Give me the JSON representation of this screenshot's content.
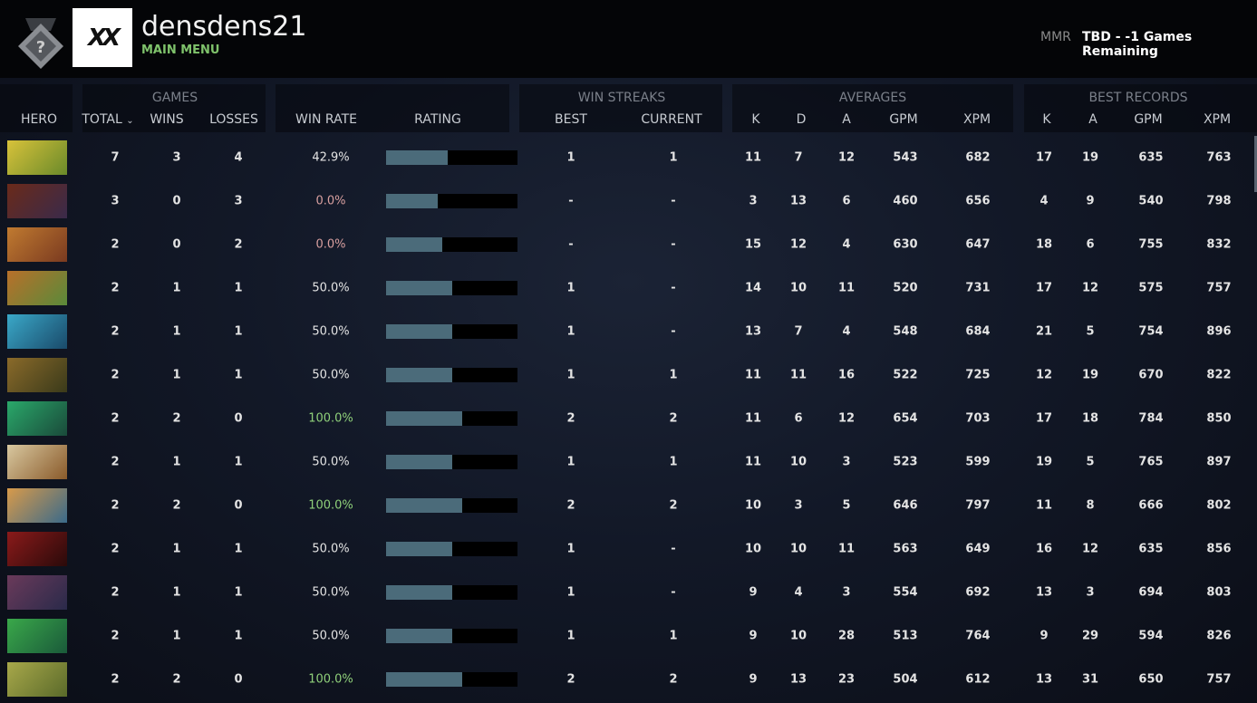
{
  "header": {
    "username": "densdens21",
    "subtitle": "MAIN MENU",
    "avatar_text": "XX",
    "mmr_label": "MMR",
    "mmr_value": "TBD - -1 Games Remaining"
  },
  "columns": {
    "hero": "HERO",
    "games_group": "GAMES",
    "total": "TOTAL",
    "wins": "WINS",
    "losses": "LOSSES",
    "win_rate": "WIN RATE",
    "rating": "RATING",
    "streaks_group": "WIN STREAKS",
    "best": "BEST",
    "current": "CURRENT",
    "averages_group": "AVERAGES",
    "k": "K",
    "d": "D",
    "a": "A",
    "gpm": "GPM",
    "xpm": "XPM",
    "best_group": "BEST RECORDS",
    "bk": "K",
    "ba": "A",
    "bgpm": "GPM",
    "bxpm": "XPM"
  },
  "colors": {
    "win_green": "#8fd07a",
    "loss_red": "#d9a0a0",
    "bar_fill": "#4b6b7a",
    "accent": "#7fc36b"
  },
  "rows": [
    {
      "total": "7",
      "wins": "3",
      "losses": "4",
      "win_rate": "42.9%",
      "rating": 0.47,
      "best": "1",
      "current": "1",
      "k": "11",
      "d": "7",
      "a": "12",
      "gpm": "543",
      "xpm": "682",
      "bk": "17",
      "ba": "19",
      "bgpm": "635",
      "bxpm": "763"
    },
    {
      "total": "3",
      "wins": "0",
      "losses": "3",
      "win_rate": "0.0%",
      "rating": 0.39,
      "best": "-",
      "current": "-",
      "k": "3",
      "d": "13",
      "a": "6",
      "gpm": "460",
      "xpm": "656",
      "bk": "4",
      "ba": "9",
      "bgpm": "540",
      "bxpm": "798"
    },
    {
      "total": "2",
      "wins": "0",
      "losses": "2",
      "win_rate": "0.0%",
      "rating": 0.43,
      "best": "-",
      "current": "-",
      "k": "15",
      "d": "12",
      "a": "4",
      "gpm": "630",
      "xpm": "647",
      "bk": "18",
      "ba": "6",
      "bgpm": "755",
      "bxpm": "832"
    },
    {
      "total": "2",
      "wins": "1",
      "losses": "1",
      "win_rate": "50.0%",
      "rating": 0.5,
      "best": "1",
      "current": "-",
      "k": "14",
      "d": "10",
      "a": "11",
      "gpm": "520",
      "xpm": "731",
      "bk": "17",
      "ba": "12",
      "bgpm": "575",
      "bxpm": "757"
    },
    {
      "total": "2",
      "wins": "1",
      "losses": "1",
      "win_rate": "50.0%",
      "rating": 0.5,
      "best": "1",
      "current": "-",
      "k": "13",
      "d": "7",
      "a": "4",
      "gpm": "548",
      "xpm": "684",
      "bk": "21",
      "ba": "5",
      "bgpm": "754",
      "bxpm": "896"
    },
    {
      "total": "2",
      "wins": "1",
      "losses": "1",
      "win_rate": "50.0%",
      "rating": 0.5,
      "best": "1",
      "current": "1",
      "k": "11",
      "d": "11",
      "a": "16",
      "gpm": "522",
      "xpm": "725",
      "bk": "12",
      "ba": "19",
      "bgpm": "670",
      "bxpm": "822"
    },
    {
      "total": "2",
      "wins": "2",
      "losses": "0",
      "win_rate": "100.0%",
      "rating": 0.58,
      "best": "2",
      "current": "2",
      "k": "11",
      "d": "6",
      "a": "12",
      "gpm": "654",
      "xpm": "703",
      "bk": "17",
      "ba": "18",
      "bgpm": "784",
      "bxpm": "850"
    },
    {
      "total": "2",
      "wins": "1",
      "losses": "1",
      "win_rate": "50.0%",
      "rating": 0.5,
      "best": "1",
      "current": "1",
      "k": "11",
      "d": "10",
      "a": "3",
      "gpm": "523",
      "xpm": "599",
      "bk": "19",
      "ba": "5",
      "bgpm": "765",
      "bxpm": "897"
    },
    {
      "total": "2",
      "wins": "2",
      "losses": "0",
      "win_rate": "100.0%",
      "rating": 0.58,
      "best": "2",
      "current": "2",
      "k": "10",
      "d": "3",
      "a": "5",
      "gpm": "646",
      "xpm": "797",
      "bk": "11",
      "ba": "8",
      "bgpm": "666",
      "bxpm": "802"
    },
    {
      "total": "2",
      "wins": "1",
      "losses": "1",
      "win_rate": "50.0%",
      "rating": 0.5,
      "best": "1",
      "current": "-",
      "k": "10",
      "d": "10",
      "a": "11",
      "gpm": "563",
      "xpm": "649",
      "bk": "16",
      "ba": "12",
      "bgpm": "635",
      "bxpm": "856"
    },
    {
      "total": "2",
      "wins": "1",
      "losses": "1",
      "win_rate": "50.0%",
      "rating": 0.5,
      "best": "1",
      "current": "-",
      "k": "9",
      "d": "4",
      "a": "3",
      "gpm": "554",
      "xpm": "692",
      "bk": "13",
      "ba": "3",
      "bgpm": "694",
      "bxpm": "803"
    },
    {
      "total": "2",
      "wins": "1",
      "losses": "1",
      "win_rate": "50.0%",
      "rating": 0.5,
      "best": "1",
      "current": "1",
      "k": "9",
      "d": "10",
      "a": "28",
      "gpm": "513",
      "xpm": "764",
      "bk": "9",
      "ba": "29",
      "bgpm": "594",
      "bxpm": "826"
    },
    {
      "total": "2",
      "wins": "2",
      "losses": "0",
      "win_rate": "100.0%",
      "rating": 0.58,
      "best": "2",
      "current": "2",
      "k": "9",
      "d": "13",
      "a": "23",
      "gpm": "504",
      "xpm": "612",
      "bk": "13",
      "ba": "31",
      "bgpm": "650",
      "bxpm": "757"
    }
  ]
}
